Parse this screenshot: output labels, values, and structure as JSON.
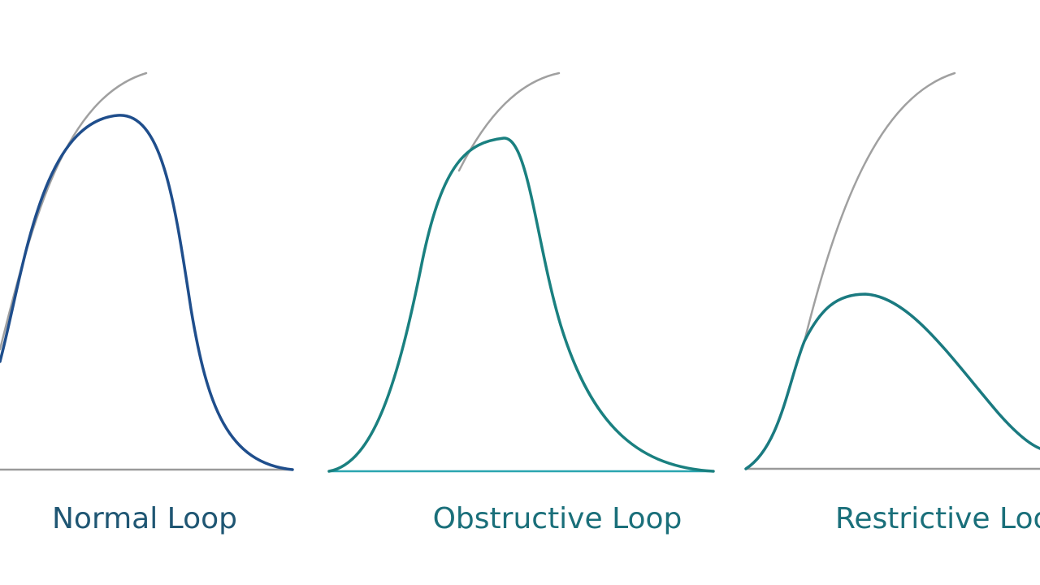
{
  "loops": [
    {
      "label": "Normal Loop"
    },
    {
      "label": "Obstructive Loop"
    },
    {
      "label": "Restrictive Loop"
    }
  ]
}
